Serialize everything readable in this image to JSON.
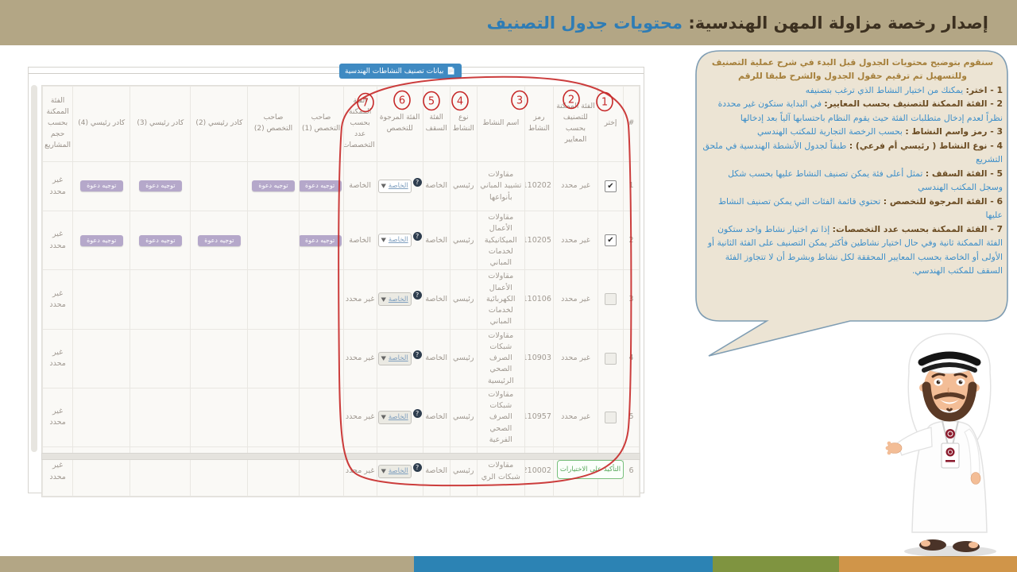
{
  "header": {
    "title_prefix": "إصدار رخصة مزاولة المهن الهندسية: ",
    "title_accent": "محتويات جدول التصنيف"
  },
  "panel": {
    "tab_label": "بيانات تصنيف النشاطات الهندسية",
    "confirm_label": "التأكيد على الاختيارات"
  },
  "icons": {
    "document": "📄",
    "check": "✔",
    "caret": "▼",
    "help": "?"
  },
  "table": {
    "invite_label": "توجيه دعوة",
    "columns": [
      {
        "key": "num",
        "label": "#"
      },
      {
        "key": "choose",
        "label": "إختر"
      },
      {
        "key": "criteria",
        "label": "الفئة الممكنة للتصنيف بحسب المعايير"
      },
      {
        "key": "code",
        "label": "رمز النشاط"
      },
      {
        "key": "name",
        "label": "اسم النشاط"
      },
      {
        "key": "type",
        "label": "نوع النشاط"
      },
      {
        "key": "ceiling",
        "label": "الفئة السقف"
      },
      {
        "key": "desired",
        "label": "الفئة المرجوة للتخصص"
      },
      {
        "key": "by_spec",
        "label": "الفئة الممكنة بحسب عدد التخصصات"
      },
      {
        "key": "spec1",
        "label": "صاحب التخصص (1)"
      },
      {
        "key": "spec2",
        "label": "صاحب التخصص (2)"
      },
      {
        "key": "cadre2",
        "label": "كادر رئيسي (2)"
      },
      {
        "key": "cadre3",
        "label": "كادر رئيسي (3)"
      },
      {
        "key": "cadre4",
        "label": "كادر رئيسي (4)"
      },
      {
        "key": "by_size",
        "label": "الفئة الممكنة بحسب حجم المشاريع"
      }
    ],
    "rows": [
      {
        "num": "1",
        "checked": true,
        "criteria": "غير محدد",
        "code": "7110202",
        "name": "مقاولات تشييد المباني بأنواعها",
        "type": "رئيسي",
        "ceiling": "الخاصة",
        "desired": "الخاصة",
        "desired_enabled": true,
        "by_spec": "الخاصة",
        "spec1": true,
        "spec2": true,
        "cadre2": false,
        "cadre3": true,
        "cadre4": true,
        "by_size": "غير محدد"
      },
      {
        "num": "2",
        "checked": true,
        "criteria": "غير محدد",
        "code": "7110205",
        "name": "مقاولات الأعمال الميكانيكية لخدمات المباني",
        "type": "رئيسي",
        "ceiling": "الخاصة",
        "desired": "الخاصة",
        "desired_enabled": true,
        "by_spec": "الخاصة",
        "spec1": true,
        "spec2": false,
        "cadre2": true,
        "cadre3": true,
        "cadre4": true,
        "by_size": "غير محدد"
      },
      {
        "num": "3",
        "checked": false,
        "criteria": "غير محدد",
        "code": "7110106",
        "name": "مقاولات الأعمال الكهربائية لخدمات المباني",
        "type": "رئيسي",
        "ceiling": "الخاصة",
        "desired": "الخاصة",
        "desired_enabled": false,
        "by_spec": "غير محدد",
        "spec1": false,
        "spec2": false,
        "cadre2": false,
        "cadre3": false,
        "cadre4": false,
        "by_size": "غير محدد"
      },
      {
        "num": "4",
        "checked": false,
        "criteria": "غير محدد",
        "code": "7110903",
        "name": "مقاولات شبكات الصرف الصحي الرئيسية",
        "type": "رئيسي",
        "ceiling": "الخاصة",
        "desired": "الخاصة",
        "desired_enabled": false,
        "by_spec": "غير محدد",
        "spec1": false,
        "spec2": false,
        "cadre2": false,
        "cadre3": false,
        "cadre4": false,
        "by_size": "غير محدد"
      },
      {
        "num": "5",
        "checked": false,
        "criteria": "غير محدد",
        "code": "7110957",
        "name": "مقاولات شبكات الصرف الصحي الفرعية",
        "type": "رئيسي",
        "ceiling": "الخاصة",
        "desired": "الخاصة",
        "desired_enabled": false,
        "by_spec": "غير محدد",
        "spec1": false,
        "spec2": false,
        "cadre2": false,
        "cadre3": false,
        "cadre4": false,
        "by_size": "غير محدد"
      },
      {
        "num": "6",
        "checked": false,
        "criteria": "غير محدد",
        "code": "7210002",
        "name": "مقاولات شبكات الري",
        "type": "رئيسي",
        "ceiling": "الخاصة",
        "desired": "الخاصة",
        "desired_enabled": false,
        "by_spec": "غير محدد",
        "spec1": false,
        "spec2": false,
        "cadre2": false,
        "cadre3": false,
        "cadre4": false,
        "by_size": "غير محدد"
      }
    ]
  },
  "annotations": {
    "circled_numbers": [
      "7",
      "6",
      "5",
      "4",
      "3",
      "2",
      "1"
    ]
  },
  "bubble": {
    "intro_line1": "سنقوم بتوضيح محتويات الجدول قبل البدء في شرح عملية التصنيف",
    "intro_line2": "وللتسهيل تم ترقيم حقول الجدول والشرح طبقا للرقم",
    "items": [
      {
        "label": "1 - اختر:",
        "text": " يمكنك من اختيار النشاط الذي ترغب بتصنيفه"
      },
      {
        "label": "2 - الفئة الممكنة للتصنيف بحسب المعايير:",
        "text": " في البداية ستكون غير محددة نظراً لعدم إدخال متطلبات الفئة حيث يقوم النظام باحتسابها آلياً بعد إدخالها"
      },
      {
        "label": "3 - رمز واسم النشاط :",
        "text": " بحسب الرخصة التجارية للمكتب الهندسي"
      },
      {
        "label": "4 - نوع النشاط ( رئيسي أم فرعي) :",
        "text": " طبقاً لجدول الأنشطة الهندسية في ملحق التشريع"
      },
      {
        "label": "5 - الفئة السقف :",
        "text": " تمثل أعلى فئة يمكن تصنيف النشاط عليها بحسب شكل وسجل المكتب الهندسي"
      },
      {
        "label": "6 - الفئة المرجوة للتخصص :",
        "text": " تحتوي قائمة الفئات التي يمكن تصنيف النشاط عليها"
      },
      {
        "label": "7 - الفئة الممكنة بحسب عدد التخصصات:",
        "text": " إذا تم اختيار نشاط واحد ستكون الفئة الممكنة ثانية وفي حال اختيار نشاطين فأكثر يمكن التصنيف على الفئة الثانية أو الأولى أو الخاصة بحسب المعايير المحققة لكل نشاط وبشرط أن لا تتجاوز الفئة السقف للمكتب الهندسي."
      }
    ]
  },
  "colors": {
    "topbar_tan": "#b3a685",
    "title_accent_blue": "#2e7cb5",
    "tab_blue": "#3f8ac2",
    "annotation_red": "#c62828",
    "invite_purple": "#b5a8ca",
    "confirm_green": "#57a85a",
    "stripe_blue": "#2c83b4",
    "stripe_olive": "#7f9440",
    "stripe_orange": "#d09549",
    "bubble_bg": "#ece4d4",
    "bubble_border": "#7f9db3"
  }
}
